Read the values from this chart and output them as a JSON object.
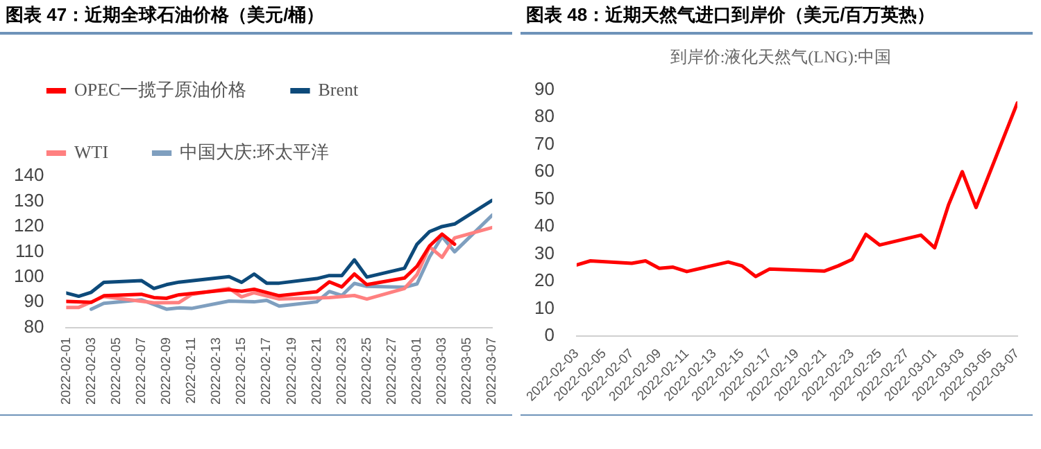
{
  "chart_data": [
    {
      "type": "line",
      "title": "图表 47：近期全球石油价格（美元/桶）",
      "legend": "top",
      "grid": false,
      "marker": "none",
      "line_style": "solid",
      "xlim": [
        "2022-02-01",
        "2022-03-07"
      ],
      "xticks": [
        "2022-02-01",
        "2022-02-03",
        "2022-02-05",
        "2022-02-07",
        "2022-02-09",
        "2022-02-11",
        "2022-02-13",
        "2022-02-15",
        "2022-02-17",
        "2022-02-19",
        "2022-02-21",
        "2022-02-23",
        "2022-02-25",
        "2022-02-27",
        "2022-03-01",
        "2022-03-03",
        "2022-03-05",
        "2022-03-07"
      ],
      "ylim": [
        80,
        140
      ],
      "yticks": [
        80,
        90,
        100,
        110,
        120,
        130,
        140
      ],
      "series": [
        {
          "name": "OPEC一揽子原油价格",
          "color": "#ff0000",
          "x": [
            "2022-02-01",
            "2022-02-03",
            "2022-02-04",
            "2022-02-07",
            "2022-02-08",
            "2022-02-09",
            "2022-02-10",
            "2022-02-14",
            "2022-02-15",
            "2022-02-16",
            "2022-02-18",
            "2022-02-21",
            "2022-02-22",
            "2022-02-23",
            "2022-02-24",
            "2022-02-25",
            "2022-02-28",
            "2022-03-01",
            "2022-03-02",
            "2022-03-03",
            "2022-03-04"
          ],
          "values": [
            90.4,
            90,
            92.6,
            93.2,
            91.9,
            91.6,
            93,
            95,
            94.4,
            95.2,
            92.6,
            94.2,
            98.1,
            96.1,
            101.2,
            97,
            99.6,
            104.3,
            112.3,
            117,
            113
          ]
        },
        {
          "name": "Brent",
          "color": "#0d4a7a",
          "x": [
            "2022-02-01",
            "2022-02-02",
            "2022-02-03",
            "2022-02-04",
            "2022-02-07",
            "2022-02-08",
            "2022-02-09",
            "2022-02-10",
            "2022-02-14",
            "2022-02-15",
            "2022-02-16",
            "2022-02-17",
            "2022-02-18",
            "2022-02-21",
            "2022-02-22",
            "2022-02-23",
            "2022-02-24",
            "2022-02-25",
            "2022-02-28",
            "2022-03-01",
            "2022-03-02",
            "2022-03-03",
            "2022-03-04",
            "2022-03-07"
          ],
          "values": [
            93.7,
            92.4,
            94,
            97.9,
            98.6,
            95.5,
            97,
            98,
            100.2,
            97.9,
            101.2,
            97.6,
            97.6,
            99.4,
            100.6,
            100.6,
            106.8,
            100,
            103.5,
            113,
            118,
            120,
            121,
            130.4
          ]
        },
        {
          "name": "WTI",
          "color": "#ff8080",
          "x": [
            "2022-02-01",
            "2022-02-02",
            "2022-02-04",
            "2022-02-08",
            "2022-02-10",
            "2022-02-11",
            "2022-02-14",
            "2022-02-15",
            "2022-02-16",
            "2022-02-18",
            "2022-02-22",
            "2022-02-24",
            "2022-02-25",
            "2022-02-28",
            "2022-03-01",
            "2022-03-02",
            "2022-03-03",
            "2022-03-04",
            "2022-03-07"
          ],
          "values": [
            88,
            88,
            92.3,
            89.8,
            89.9,
            93.1,
            95.5,
            92.2,
            93.8,
            91.3,
            91.9,
            92.7,
            91.3,
            95.5,
            101,
            112,
            107.8,
            115.5,
            119.6
          ]
        },
        {
          "name": "中国大庆:环太平洋",
          "color": "#7f9fbf",
          "x": [
            "2022-02-03",
            "2022-02-04",
            "2022-02-07",
            "2022-02-09",
            "2022-02-10",
            "2022-02-11",
            "2022-02-14",
            "2022-02-16",
            "2022-02-17",
            "2022-02-18",
            "2022-02-21",
            "2022-02-22",
            "2022-02-23",
            "2022-02-24",
            "2022-02-25",
            "2022-02-28",
            "2022-03-01",
            "2022-03-02",
            "2022-03-03",
            "2022-03-04",
            "2022-03-07"
          ],
          "values": [
            87.3,
            89.6,
            91,
            87.3,
            87.8,
            87.6,
            90.5,
            90.2,
            90.8,
            88.5,
            90.2,
            94.3,
            92.7,
            97.5,
            96.3,
            96,
            97.3,
            108,
            116,
            110,
            124.5
          ]
        }
      ]
    },
    {
      "type": "line",
      "title": "图表 48：近期天然气进口到岸价（美元/百万英热）",
      "subtitle": "到岸价:液化天然气(LNG):中国",
      "legend": false,
      "grid": false,
      "marker": "none",
      "line_style": "solid",
      "xlim": [
        "2022-02-03",
        "2022-03-07"
      ],
      "xticks": [
        "2022-02-03",
        "2022-02-05",
        "2022-02-07",
        "2022-02-09",
        "2022-02-11",
        "2022-02-13",
        "2022-02-15",
        "2022-02-17",
        "2022-02-19",
        "2022-02-21",
        "2022-02-23",
        "2022-02-25",
        "2022-02-27",
        "2022-03-01",
        "2022-03-03",
        "2022-03-05",
        "2022-03-07"
      ],
      "ylim": [
        0,
        90
      ],
      "yticks": [
        0,
        10,
        20,
        30,
        40,
        50,
        60,
        70,
        80,
        90
      ],
      "series": [
        {
          "color": "#ff0000",
          "x": [
            "2022-02-03",
            "2022-02-04",
            "2022-02-07",
            "2022-02-08",
            "2022-02-09",
            "2022-02-10",
            "2022-02-11",
            "2022-02-14",
            "2022-02-15",
            "2022-02-16",
            "2022-02-17",
            "2022-02-21",
            "2022-02-22",
            "2022-02-23",
            "2022-02-24",
            "2022-02-25",
            "2022-02-28",
            "2022-03-01",
            "2022-03-02",
            "2022-03-03",
            "2022-03-04",
            "2022-03-07"
          ],
          "values": [
            26,
            27.5,
            26.6,
            27.5,
            24.8,
            25.2,
            23.6,
            27.1,
            25.7,
            21.8,
            24.5,
            23.8,
            25.7,
            28,
            37.2,
            33.3,
            36.9,
            32.3,
            47.9,
            60.1,
            47,
            85.2
          ]
        }
      ]
    }
  ]
}
